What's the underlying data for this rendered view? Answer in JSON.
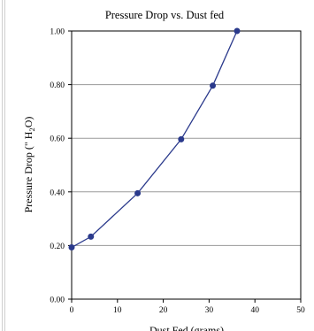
{
  "chart_data": {
    "type": "line",
    "title": "Pressure Drop vs. Dust fed",
    "xlabel": "Dust Fed (grams)",
    "ylabel_parts": [
      "Pressure Drop (\" H",
      "2",
      "O)"
    ],
    "xlim": [
      0,
      50
    ],
    "ylim": [
      0,
      1
    ],
    "x_ticks": [
      0,
      10,
      20,
      30,
      40,
      50
    ],
    "x_tick_labels": [
      "0",
      "10",
      "20",
      "30",
      "40",
      "50"
    ],
    "y_ticks": [
      0,
      0.2,
      0.4,
      0.6,
      0.8,
      1.0
    ],
    "y_tick_labels": [
      "0.00",
      "0.20",
      "0.40",
      "0.60",
      "0.80",
      "1.00"
    ],
    "grid": "horizontal",
    "legend": "none",
    "series": [
      {
        "x": [
          0,
          4.2,
          14.4,
          23.9,
          30.8,
          36.1
        ],
        "y": [
          0.193,
          0.233,
          0.395,
          0.596,
          0.796,
          1.0
        ],
        "color": "#2b3a8c"
      }
    ]
  }
}
